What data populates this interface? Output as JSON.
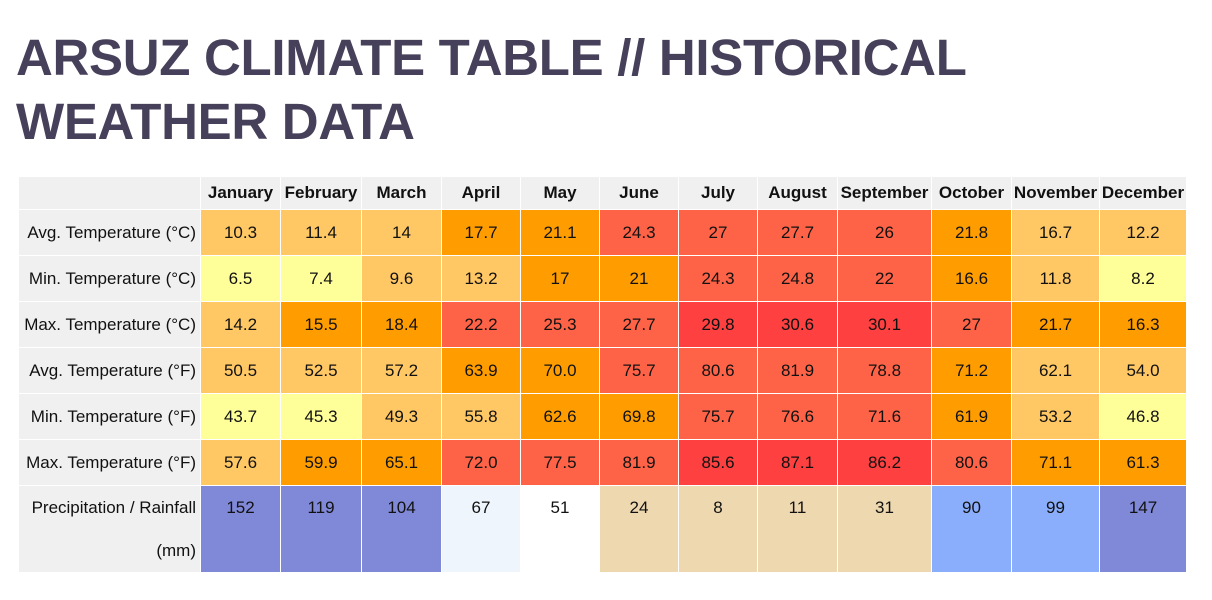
{
  "title": "ARSUZ CLIMATE TABLE // HISTORICAL WEATHER DATA",
  "months": [
    "January",
    "February",
    "March",
    "April",
    "May",
    "June",
    "July",
    "August",
    "September",
    "October",
    "November",
    "December"
  ],
  "rows": [
    {
      "label": "Avg. Temperature (°C)",
      "values": [
        "10.3",
        "11.4",
        "14",
        "17.7",
        "21.1",
        "24.3",
        "27",
        "27.7",
        "26",
        "21.8",
        "16.7",
        "12.2"
      ],
      "colors": [
        "#ffc864",
        "#ffc864",
        "#ffc864",
        "#ff9d00",
        "#ff9d00",
        "#ff6347",
        "#ff6347",
        "#ff6347",
        "#ff6347",
        "#ff9d00",
        "#ffc864",
        "#ffc864"
      ]
    },
    {
      "label": "Min. Temperature (°C)",
      "values": [
        "6.5",
        "7.4",
        "9.6",
        "13.2",
        "17",
        "21",
        "24.3",
        "24.8",
        "22",
        "16.6",
        "11.8",
        "8.2"
      ],
      "colors": [
        "#ffff99",
        "#ffff99",
        "#ffc864",
        "#ffc864",
        "#ff9d00",
        "#ff9d00",
        "#ff6347",
        "#ff6347",
        "#ff6347",
        "#ff9d00",
        "#ffc864",
        "#ffff99"
      ]
    },
    {
      "label": "Max. Temperature (°C)",
      "values": [
        "14.2",
        "15.5",
        "18.4",
        "22.2",
        "25.3",
        "27.7",
        "29.8",
        "30.6",
        "30.1",
        "27",
        "21.7",
        "16.3"
      ],
      "colors": [
        "#ffc864",
        "#ff9d00",
        "#ff9d00",
        "#ff6347",
        "#ff6347",
        "#ff6347",
        "#ff4040",
        "#ff4040",
        "#ff4040",
        "#ff6347",
        "#ff9d00",
        "#ff9d00"
      ]
    },
    {
      "label": "Avg. Temperature (°F)",
      "values": [
        "50.5",
        "52.5",
        "57.2",
        "63.9",
        "70.0",
        "75.7",
        "80.6",
        "81.9",
        "78.8",
        "71.2",
        "62.1",
        "54.0"
      ],
      "colors": [
        "#ffc864",
        "#ffc864",
        "#ffc864",
        "#ff9d00",
        "#ff9d00",
        "#ff6347",
        "#ff6347",
        "#ff6347",
        "#ff6347",
        "#ff9d00",
        "#ffc864",
        "#ffc864"
      ]
    },
    {
      "label": "Min. Temperature (°F)",
      "values": [
        "43.7",
        "45.3",
        "49.3",
        "55.8",
        "62.6",
        "69.8",
        "75.7",
        "76.6",
        "71.6",
        "61.9",
        "53.2",
        "46.8"
      ],
      "colors": [
        "#ffff99",
        "#ffff99",
        "#ffc864",
        "#ffc864",
        "#ff9d00",
        "#ff9d00",
        "#ff6347",
        "#ff6347",
        "#ff6347",
        "#ff9d00",
        "#ffc864",
        "#ffff99"
      ]
    },
    {
      "label": "Max. Temperature (°F)",
      "values": [
        "57.6",
        "59.9",
        "65.1",
        "72.0",
        "77.5",
        "81.9",
        "85.6",
        "87.1",
        "86.2",
        "80.6",
        "71.1",
        "61.3"
      ],
      "colors": [
        "#ffc864",
        "#ff9d00",
        "#ff9d00",
        "#ff6347",
        "#ff6347",
        "#ff6347",
        "#ff4040",
        "#ff4040",
        "#ff4040",
        "#ff6347",
        "#ff9d00",
        "#ff9d00"
      ]
    }
  ],
  "rain": {
    "label_line1": "Precipitation / Rainfall",
    "label_line2": "(mm)",
    "values": [
      "152",
      "119",
      "104",
      "67",
      "51",
      "24",
      "8",
      "11",
      "31",
      "90",
      "99",
      "147"
    ],
    "colors": [
      "#8088d8",
      "#8088d8",
      "#8088d8",
      "#eef5fc",
      "#ffffff",
      "#eed8b0",
      "#eed8b0",
      "#eed8b0",
      "#eed8b0",
      "#8aaefc",
      "#8aaefc",
      "#8088d8"
    ]
  }
}
